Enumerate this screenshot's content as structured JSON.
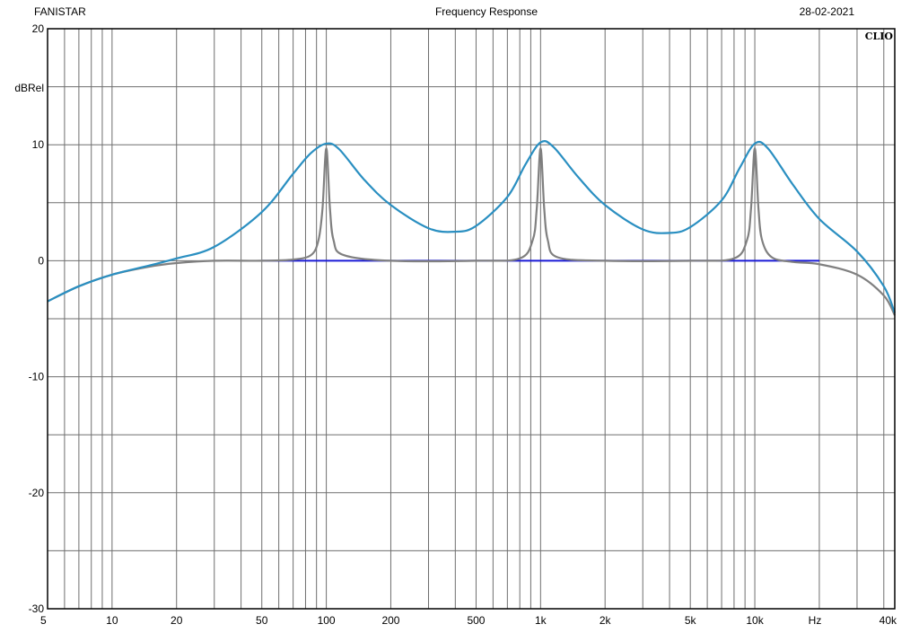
{
  "header": {
    "brand": "FANISTAR",
    "title": "Frequency Response",
    "date": "28-02-2021"
  },
  "watermark": "CLIO",
  "chart_data": {
    "type": "line",
    "title": "Frequency Response",
    "ylabel": "dBRel",
    "xlabel": "Hz",
    "x_scale": "log",
    "xlim": [
      5,
      45000
    ],
    "ylim": [
      -30,
      20
    ],
    "grid": true,
    "y_ticks": [
      {
        "value": 20,
        "label": "20"
      },
      {
        "value": 10,
        "label": "10"
      },
      {
        "value": 0,
        "label": "0"
      },
      {
        "value": -10,
        "label": "-10"
      },
      {
        "value": -20,
        "label": "-20"
      },
      {
        "value": -30,
        "label": "-30"
      }
    ],
    "y_minor_ticks": [
      15,
      5,
      -5,
      -15,
      -25
    ],
    "x_ticks": [
      {
        "value": 5,
        "label": "5"
      },
      {
        "value": 10,
        "label": "10"
      },
      {
        "value": 20,
        "label": "20"
      },
      {
        "value": 50,
        "label": "50"
      },
      {
        "value": 100,
        "label": "100"
      },
      {
        "value": 200,
        "label": "200"
      },
      {
        "value": 500,
        "label": "500"
      },
      {
        "value": 1000,
        "label": "1k"
      },
      {
        "value": 2000,
        "label": "2k"
      },
      {
        "value": 5000,
        "label": "5k"
      },
      {
        "value": 10000,
        "label": "10k"
      },
      {
        "value": 40000,
        "label": "40k"
      }
    ],
    "series": [
      {
        "color": "#2a8fc1",
        "x": [
          5,
          7,
          10,
          15,
          20,
          30,
          50,
          70,
          85,
          100,
          115,
          150,
          200,
          300,
          400,
          500,
          700,
          850,
          1000,
          1150,
          1500,
          2000,
          3000,
          4000,
          5000,
          7000,
          8500,
          10000,
          11500,
          15000,
          20000,
          30000,
          40000,
          45000
        ],
        "y": [
          -3.5,
          -2.2,
          -1.2,
          -0.4,
          0.2,
          1.2,
          4.2,
          7.5,
          9.3,
          10.1,
          9.6,
          7.0,
          4.8,
          2.8,
          2.5,
          3.0,
          5.5,
          8.3,
          10.2,
          9.8,
          7.2,
          4.8,
          2.7,
          2.4,
          2.9,
          5.2,
          8.0,
          10.1,
          9.7,
          6.6,
          3.6,
          0.8,
          -2.2,
          -4.5
        ]
      },
      {
        "color": "#808080",
        "x": [
          5,
          7,
          10,
          15,
          20,
          30,
          50,
          70,
          85,
          92,
          96,
          100,
          104,
          108,
          120,
          200,
          500,
          800,
          920,
          960,
          1000,
          1040,
          1080,
          1200,
          2000,
          5000,
          8000,
          9200,
          9600,
          10000,
          10400,
          10800,
          12000,
          15000,
          20000,
          30000,
          40000,
          45000
        ],
        "y": [
          -3.5,
          -2.2,
          -1.2,
          -0.5,
          -0.2,
          0,
          0,
          0.1,
          0.5,
          1.8,
          4.5,
          9.7,
          4.5,
          1.8,
          0.5,
          0,
          0,
          0.2,
          1.8,
          4.5,
          9.7,
          4.5,
          1.8,
          0.3,
          0,
          0,
          0.2,
          1.8,
          4.5,
          9.7,
          4.5,
          1.8,
          0.3,
          -0.1,
          -0.3,
          -1.2,
          -3.0,
          -4.7
        ]
      },
      {
        "color": "#1a1ad6",
        "x": [
          50,
          200,
          700,
          2000,
          7000,
          20000
        ],
        "y": [
          0,
          0,
          0,
          0,
          0,
          0
        ]
      }
    ]
  }
}
